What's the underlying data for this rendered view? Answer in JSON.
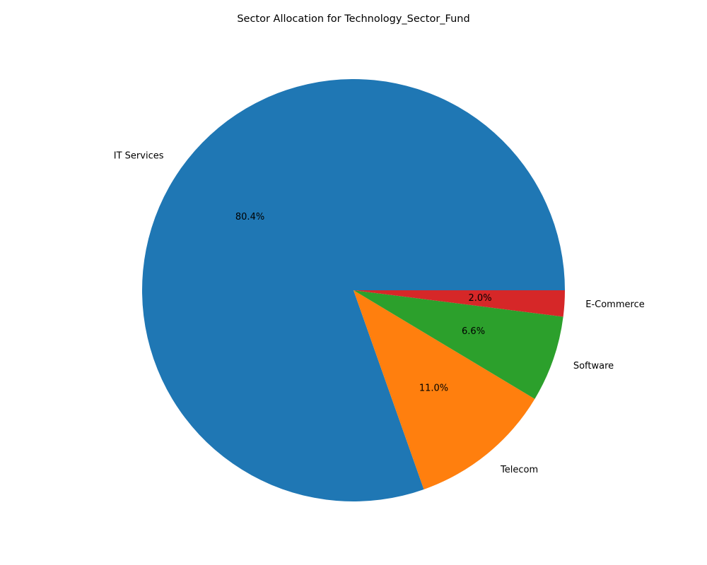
{
  "chart_data": {
    "type": "pie",
    "title": "Sector Allocation for Technology_Sector_Fund",
    "start_angle": 0,
    "direction": "counterclockwise",
    "legend": "none",
    "slices": [
      {
        "label": "IT Services",
        "value": 80.4,
        "pct_label": "80.4%",
        "color": "#1f77b4"
      },
      {
        "label": "Telecom",
        "value": 11.0,
        "pct_label": "11.0%",
        "color": "#ff7f0e"
      },
      {
        "label": "Software",
        "value": 6.6,
        "pct_label": "6.6%",
        "color": "#2ca02c"
      },
      {
        "label": "E-Commerce",
        "value": 2.0,
        "pct_label": "2.0%",
        "color": "#d62728"
      }
    ]
  }
}
